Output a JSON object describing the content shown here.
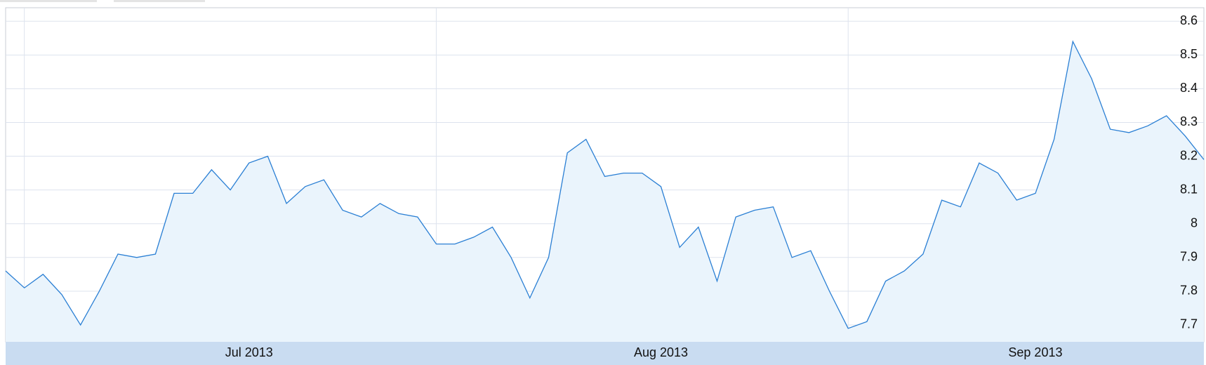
{
  "chart_data": {
    "type": "area",
    "categories": [
      null,
      null,
      null,
      null,
      null,
      null,
      null,
      null,
      null,
      null,
      null,
      null,
      null,
      "Jul 2013",
      null,
      null,
      null,
      null,
      null,
      null,
      null,
      null,
      null,
      null,
      null,
      null,
      null,
      null,
      null,
      null,
      null,
      null,
      null,
      null,
      null,
      "Aug 2013",
      null,
      null,
      null,
      null,
      null,
      null,
      null,
      null,
      null,
      null,
      null,
      null,
      null,
      null,
      null,
      null,
      null,
      null,
      null,
      "Sep 2013",
      null,
      null,
      null,
      null,
      null,
      null,
      null,
      null,
      null
    ],
    "values": [
      7.86,
      7.81,
      7.85,
      7.79,
      7.7,
      7.8,
      7.91,
      7.9,
      7.91,
      8.09,
      8.09,
      8.16,
      8.1,
      8.18,
      8.2,
      8.06,
      8.11,
      8.13,
      8.04,
      8.02,
      8.06,
      8.03,
      8.02,
      7.94,
      7.94,
      7.96,
      7.99,
      7.9,
      7.78,
      7.9,
      8.21,
      8.25,
      8.14,
      8.15,
      8.15,
      8.11,
      7.93,
      7.99,
      7.83,
      8.02,
      8.04,
      8.05,
      7.9,
      7.92,
      7.8,
      7.69,
      7.71,
      7.83,
      7.86,
      7.91,
      8.07,
      8.05,
      8.18,
      8.15,
      8.07,
      8.09,
      8.25,
      8.54,
      8.43,
      8.28,
      8.27,
      8.29,
      8.32,
      8.26,
      8.19
    ],
    "color": "#2a7fd4",
    "fill": "#eaf4fc",
    "ylim": [
      7.65,
      8.64
    ],
    "yticks": [
      7.7,
      7.8,
      7.9,
      8.0,
      8.1,
      8.2,
      8.3,
      8.4,
      8.5,
      8.6
    ],
    "grid": true
  }
}
